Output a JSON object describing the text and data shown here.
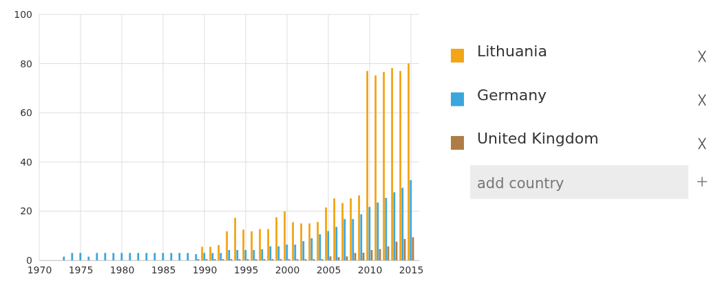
{
  "chart_data": {
    "type": "bar",
    "x": [
      1973,
      1974,
      1975,
      1976,
      1977,
      1978,
      1979,
      1980,
      1981,
      1982,
      1983,
      1984,
      1985,
      1986,
      1987,
      1988,
      1989,
      1990,
      1991,
      1992,
      1993,
      1994,
      1995,
      1996,
      1997,
      1998,
      1999,
      2000,
      2001,
      2002,
      2003,
      2004,
      2005,
      2006,
      2007,
      2008,
      2009,
      2010,
      2011,
      2012,
      2013,
      2014,
      2015
    ],
    "series": [
      {
        "name": "Lithuania",
        "color": "#f2a516",
        "values": [
          null,
          null,
          null,
          null,
          null,
          null,
          null,
          null,
          null,
          null,
          null,
          null,
          null,
          null,
          null,
          null,
          null,
          5.5,
          5.5,
          6.2,
          11.8,
          17.3,
          12.5,
          11.8,
          12.7,
          12.7,
          17.5,
          19.9,
          15.5,
          15,
          15,
          15.6,
          21.5,
          25.2,
          23.3,
          25.2,
          26.4,
          77,
          75.2,
          76.6,
          78.2,
          77,
          80.1
        ]
      },
      {
        "name": "Germany",
        "color": "#3aa6dd",
        "values": [
          1.5,
          3,
          3,
          1.5,
          3,
          3,
          3,
          3,
          3,
          3,
          3,
          3,
          3,
          3,
          3,
          3,
          2.5,
          3,
          3,
          3,
          4.2,
          4.2,
          4.2,
          4.2,
          4.5,
          5.7,
          5.7,
          6.4,
          6.4,
          7.8,
          9,
          10.6,
          11.9,
          13.6,
          16.8,
          16.8,
          18.7,
          21.7,
          23.5,
          25.4,
          27.7,
          29.5,
          32.6
        ]
      },
      {
        "name": "United Kingdom",
        "color": "#b07c46",
        "values": [
          null,
          null,
          null,
          null,
          null,
          null,
          null,
          null,
          null,
          null,
          null,
          null,
          null,
          null,
          null,
          null,
          0.5,
          0.5,
          0.5,
          0.5,
          0.5,
          0.5,
          0.5,
          0.5,
          0.5,
          0.5,
          0.5,
          0.5,
          0.5,
          0.5,
          0.5,
          0.5,
          1.6,
          1.3,
          1.6,
          3,
          3.1,
          4.2,
          4.6,
          5.7,
          7.6,
          8.7,
          9.4
        ]
      }
    ],
    "xlim": [
      1970,
      2016
    ],
    "xticks": [
      1970,
      1975,
      1980,
      1985,
      1990,
      1995,
      2000,
      2005,
      2010,
      2015
    ],
    "ylim": [
      0,
      100
    ],
    "yticks": [
      0,
      20,
      40,
      60,
      80,
      100
    ],
    "grid": true,
    "legend": "right",
    "annotations": [
      "add country"
    ]
  }
}
